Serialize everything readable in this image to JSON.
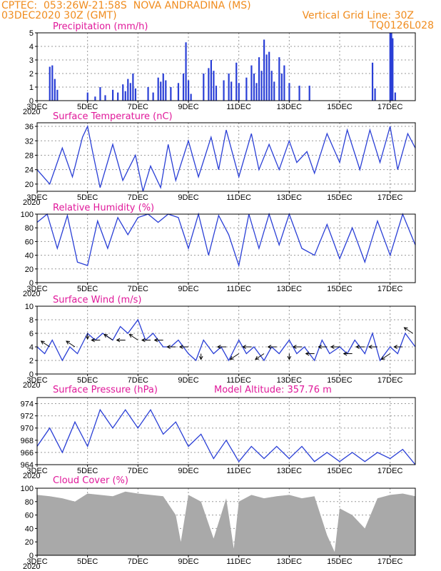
{
  "header": {
    "line1": "CPTEC:  053:26W-21:58S  NOVA ANDRADINA (MS)",
    "line2": "03DEC2020 30Z (GMT)",
    "right1": "Vertical Grid Line: 30Z",
    "right2": "TQ0126L028"
  },
  "colors": {
    "header": "#f08c1e",
    "title": "#e0189a",
    "series": "#2a3fd6",
    "cloud": "#a9a9a9"
  },
  "chart_data": [
    {
      "type": "bar",
      "title": "Precipitation (mm/h)",
      "ylim": [
        0,
        5
      ],
      "yticks": [
        0,
        1,
        2,
        3,
        4,
        5
      ],
      "x_range_days": [
        3,
        18
      ],
      "bars": [
        [
          3.5,
          2.5
        ],
        [
          3.6,
          2.6
        ],
        [
          3.7,
          1.6
        ],
        [
          3.8,
          0.8
        ],
        [
          5.0,
          0.6
        ],
        [
          5.3,
          0.3
        ],
        [
          5.5,
          1.0
        ],
        [
          5.7,
          0.4
        ],
        [
          6.0,
          0.8
        ],
        [
          6.2,
          0.6
        ],
        [
          6.4,
          1.2
        ],
        [
          6.5,
          0.7
        ],
        [
          6.6,
          1.6
        ],
        [
          6.7,
          1.3
        ],
        [
          6.8,
          2.0
        ],
        [
          6.9,
          0.9
        ],
        [
          7.4,
          1.0
        ],
        [
          7.6,
          0.6
        ],
        [
          7.8,
          1.7
        ],
        [
          7.9,
          1.4
        ],
        [
          8.0,
          2.0
        ],
        [
          8.1,
          1.5
        ],
        [
          8.3,
          1.0
        ],
        [
          8.6,
          1.3
        ],
        [
          8.8,
          2.0
        ],
        [
          8.9,
          4.3
        ],
        [
          9.0,
          1.5
        ],
        [
          9.1,
          0.5
        ],
        [
          9.6,
          2.0
        ],
        [
          9.8,
          2.4
        ],
        [
          9.9,
          3.0
        ],
        [
          10.0,
          2.2
        ],
        [
          10.1,
          1.1
        ],
        [
          10.4,
          1.5
        ],
        [
          10.6,
          2.0
        ],
        [
          10.7,
          1.4
        ],
        [
          10.9,
          2.8
        ],
        [
          11.0,
          1.3
        ],
        [
          11.3,
          1.7
        ],
        [
          11.5,
          2.6
        ],
        [
          11.6,
          2.0
        ],
        [
          11.7,
          1.3
        ],
        [
          11.8,
          3.2
        ],
        [
          11.9,
          2.2
        ],
        [
          12.0,
          4.5
        ],
        [
          12.1,
          3.4
        ],
        [
          12.2,
          3.6
        ],
        [
          12.3,
          2.2
        ],
        [
          12.4,
          1.4
        ],
        [
          12.6,
          3.2
        ],
        [
          12.7,
          2.0
        ],
        [
          12.8,
          2.6
        ],
        [
          13.0,
          1.3
        ],
        [
          13.4,
          1.1
        ],
        [
          13.8,
          1.1
        ],
        [
          16.3,
          2.8
        ],
        [
          16.4,
          0.9
        ],
        [
          17.0,
          5.0
        ],
        [
          17.05,
          5.0
        ],
        [
          17.1,
          4.6
        ],
        [
          17.2,
          0.6
        ]
      ]
    },
    {
      "type": "line",
      "title": "Surface Temperature (nC)",
      "ylim": [
        18,
        37
      ],
      "yticks": [
        20,
        24,
        28,
        32,
        36
      ],
      "x": [
        3,
        3.5,
        4,
        4.4,
        4.8,
        5,
        5.2,
        5.5,
        6,
        6.4,
        6.9,
        7.2,
        7.5,
        7.9,
        8.2,
        8.5,
        9,
        9.4,
        9.9,
        10.2,
        10.5,
        11,
        11.5,
        11.8,
        12.2,
        12.6,
        13,
        13.3,
        13.7,
        14,
        14.5,
        15,
        15.3,
        15.8,
        16.2,
        16.6,
        17,
        17.3,
        17.7,
        18
      ],
      "values": [
        24,
        20,
        30,
        22,
        33,
        36,
        29,
        19,
        31,
        21,
        28,
        18,
        25,
        19,
        31,
        21,
        32,
        22,
        33,
        24,
        35,
        22,
        34,
        24,
        31,
        24,
        32,
        26,
        29,
        23,
        34,
        26,
        35,
        24,
        35,
        26,
        36,
        24,
        34,
        30
      ]
    },
    {
      "type": "line",
      "title": "Relative Humidity (%)",
      "ylim": [
        0,
        100
      ],
      "yticks": [
        0,
        20,
        40,
        60,
        80,
        100
      ],
      "x": [
        3,
        3.4,
        3.8,
        4.2,
        4.6,
        5,
        5.4,
        5.8,
        6.2,
        6.6,
        7,
        7.4,
        7.8,
        8.2,
        8.6,
        9,
        9.4,
        9.8,
        10.2,
        10.6,
        11,
        11.4,
        11.8,
        12.2,
        12.6,
        13,
        13.5,
        14,
        14.5,
        15,
        15.5,
        16,
        16.5,
        17,
        17.5,
        18
      ],
      "values": [
        88,
        100,
        50,
        98,
        30,
        25,
        90,
        50,
        95,
        70,
        95,
        100,
        88,
        100,
        95,
        50,
        100,
        40,
        98,
        70,
        25,
        100,
        50,
        100,
        55,
        100,
        50,
        40,
        85,
        35,
        80,
        30,
        90,
        40,
        100,
        55
      ]
    },
    {
      "type": "line",
      "title": "Surface Wind (m/s)",
      "ylim": [
        0,
        10
      ],
      "yticks": [
        0,
        2,
        4,
        6,
        8,
        10
      ],
      "x": [
        3,
        3.3,
        3.6,
        4,
        4.3,
        4.6,
        5,
        5.3,
        5.6,
        6,
        6.3,
        6.6,
        7,
        7.3,
        7.6,
        8,
        8.3,
        8.6,
        9,
        9.3,
        9.6,
        10,
        10.3,
        10.6,
        11,
        11.3,
        11.6,
        12,
        12.3,
        12.6,
        13,
        13.3,
        13.6,
        14,
        14.3,
        14.6,
        15,
        15.3,
        15.6,
        16,
        16.3,
        16.6,
        17,
        17.3,
        17.6,
        18
      ],
      "values": [
        4,
        3,
        5,
        2,
        4,
        3,
        6,
        5,
        6,
        5,
        7,
        6,
        8,
        5,
        6,
        4,
        4,
        5,
        3,
        2,
        5,
        3,
        4,
        2,
        5,
        3,
        4,
        2,
        4,
        3,
        5,
        3,
        4,
        2,
        5,
        3,
        4,
        3,
        5,
        3,
        6,
        2,
        4,
        3,
        6,
        4
      ],
      "arrows": [
        [
          3.5,
          4,
          -1,
          1
        ],
        [
          4.5,
          4,
          -1,
          1
        ],
        [
          5,
          6,
          0,
          -1
        ],
        [
          5.5,
          5,
          -1,
          0
        ],
        [
          6,
          5,
          -1,
          1
        ],
        [
          6.5,
          5,
          -1,
          0
        ],
        [
          7,
          5,
          -1,
          1
        ],
        [
          7.5,
          5,
          -1,
          0
        ],
        [
          8,
          5,
          -1,
          0
        ],
        [
          8.5,
          4,
          -1,
          0
        ],
        [
          9,
          4,
          -1,
          0
        ],
        [
          9.5,
          3,
          0,
          -1
        ],
        [
          10.5,
          4,
          -1,
          0
        ],
        [
          11,
          3,
          -1,
          -1
        ],
        [
          11.5,
          4,
          -1,
          0
        ],
        [
          12,
          3,
          -1,
          -1
        ],
        [
          12.5,
          4,
          -1,
          0
        ],
        [
          13,
          3,
          0,
          -1
        ],
        [
          13.5,
          4,
          -1,
          0
        ],
        [
          14,
          3,
          -1,
          0
        ],
        [
          14.5,
          4,
          -1,
          0
        ],
        [
          15,
          4,
          -1,
          0
        ],
        [
          15.5,
          3,
          -1,
          0
        ],
        [
          16,
          4,
          -1,
          0
        ],
        [
          16.5,
          4,
          -1,
          0
        ],
        [
          17,
          3,
          -1,
          -1
        ],
        [
          17.5,
          4,
          -1,
          0
        ],
        [
          17.9,
          6,
          -1,
          1
        ]
      ]
    },
    {
      "type": "line",
      "title": "Surface Pressure (hPa)",
      "annotation": "Model Altitude: 357.76 m",
      "ylim": [
        964,
        975
      ],
      "yticks": [
        964,
        966,
        968,
        970,
        972,
        974
      ],
      "x": [
        3,
        3.5,
        4,
        4.5,
        5,
        5.5,
        6,
        6.5,
        7,
        7.5,
        8,
        8.5,
        9,
        9.5,
        10,
        10.5,
        11,
        11.5,
        12,
        12.5,
        13,
        13.5,
        14,
        14.5,
        15,
        15.5,
        16,
        16.5,
        17,
        17.5,
        18
      ],
      "values": [
        967,
        970,
        966,
        971,
        967,
        973,
        970,
        973,
        970,
        973,
        969,
        971,
        967,
        969,
        965,
        968,
        964.5,
        967,
        965,
        967,
        965,
        967,
        964.5,
        966,
        964.5,
        966,
        964.5,
        966,
        965,
        966.5,
        964
      ]
    },
    {
      "type": "area",
      "title": "Cloud Cover (%)",
      "ylim": [
        0,
        100
      ],
      "yticks": [
        0,
        20,
        40,
        60,
        80,
        100
      ],
      "x": [
        3,
        3.5,
        4,
        4.5,
        5,
        5.5,
        6,
        6.5,
        7,
        7.5,
        8,
        8.5,
        8.7,
        9,
        9.5,
        10,
        10.5,
        10.8,
        11,
        11.5,
        12,
        12.5,
        13,
        13.5,
        14,
        14.5,
        14.8,
        15,
        15.5,
        16,
        16.5,
        17,
        17.5,
        18
      ],
      "values": [
        90,
        88,
        85,
        80,
        92,
        90,
        88,
        95,
        92,
        90,
        88,
        60,
        20,
        90,
        80,
        25,
        85,
        10,
        80,
        90,
        85,
        88,
        90,
        85,
        88,
        30,
        5,
        70,
        60,
        40,
        85,
        90,
        92,
        88
      ]
    }
  ],
  "x_axis": {
    "tick_days": [
      3,
      5,
      7,
      9,
      11,
      13,
      15,
      17
    ],
    "labels": [
      "3DEC",
      "5DEC",
      "7DEC",
      "9DEC",
      "11DEC",
      "13DEC",
      "15DEC",
      "17DEC"
    ],
    "sub_label": "2020"
  }
}
